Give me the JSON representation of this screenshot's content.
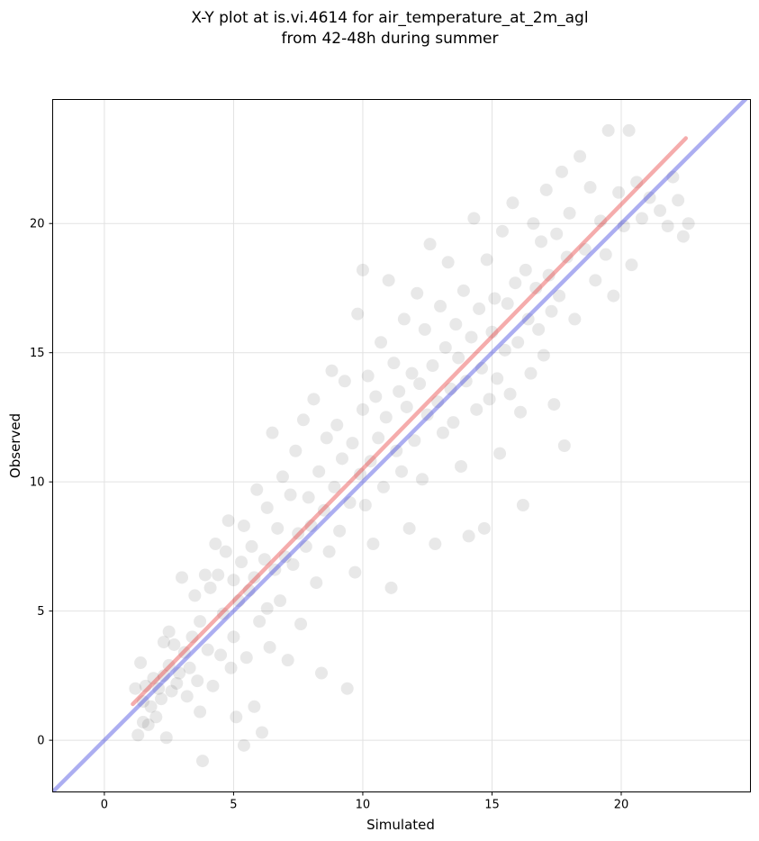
{
  "chart_data": {
    "type": "scatter",
    "title_lines": [
      "X-Y plot at is.vi.4614 for air_temperature_at_2m_agl",
      "from 42-48h during summer"
    ],
    "xlabel": "Simulated",
    "ylabel": "Observed",
    "xlim": [
      -2,
      25
    ],
    "ylim": [
      -2,
      24.8
    ],
    "xticks": [
      0,
      5,
      10,
      15,
      20
    ],
    "yticks": [
      0,
      5,
      10,
      15,
      20
    ],
    "grid": true,
    "point_color": "#000000",
    "point_alpha": 0.09,
    "points": [
      [
        1.2,
        2.0
      ],
      [
        1.3,
        0.2
      ],
      [
        1.4,
        3.0
      ],
      [
        1.5,
        1.5
      ],
      [
        1.5,
        0.7
      ],
      [
        1.6,
        2.1
      ],
      [
        1.7,
        0.6
      ],
      [
        1.8,
        1.3
      ],
      [
        1.9,
        2.4
      ],
      [
        2.0,
        0.9
      ],
      [
        2.1,
        2.0
      ],
      [
        2.2,
        1.6
      ],
      [
        2.3,
        3.8
      ],
      [
        2.3,
        2.5
      ],
      [
        2.4,
        0.1
      ],
      [
        2.5,
        2.9
      ],
      [
        2.5,
        4.2
      ],
      [
        2.6,
        1.9
      ],
      [
        2.7,
        3.7
      ],
      [
        2.8,
        2.2
      ],
      [
        2.9,
        2.6
      ],
      [
        3.0,
        6.3
      ],
      [
        3.1,
        3.4
      ],
      [
        3.2,
        1.7
      ],
      [
        3.3,
        2.8
      ],
      [
        3.4,
        4.0
      ],
      [
        3.5,
        5.6
      ],
      [
        3.6,
        2.3
      ],
      [
        3.7,
        4.6
      ],
      [
        3.7,
        1.1
      ],
      [
        3.8,
        -0.8
      ],
      [
        3.9,
        6.4
      ],
      [
        4.0,
        3.5
      ],
      [
        4.1,
        5.9
      ],
      [
        4.2,
        2.1
      ],
      [
        4.3,
        7.6
      ],
      [
        4.4,
        6.4
      ],
      [
        4.5,
        3.3
      ],
      [
        4.6,
        4.9
      ],
      [
        4.7,
        7.3
      ],
      [
        4.8,
        8.5
      ],
      [
        4.9,
        2.8
      ],
      [
        5.0,
        6.2
      ],
      [
        5.0,
        4.0
      ],
      [
        5.1,
        0.9
      ],
      [
        5.2,
        5.4
      ],
      [
        5.3,
        6.9
      ],
      [
        5.4,
        -0.2
      ],
      [
        5.4,
        8.3
      ],
      [
        5.5,
        3.2
      ],
      [
        5.6,
        5.8
      ],
      [
        5.7,
        7.5
      ],
      [
        5.8,
        1.3
      ],
      [
        5.8,
        6.3
      ],
      [
        5.9,
        9.7
      ],
      [
        6.0,
        4.6
      ],
      [
        6.1,
        0.3
      ],
      [
        6.2,
        7.0
      ],
      [
        6.3,
        5.1
      ],
      [
        6.3,
        9.0
      ],
      [
        6.4,
        3.6
      ],
      [
        6.5,
        11.9
      ],
      [
        6.6,
        6.6
      ],
      [
        6.7,
        8.2
      ],
      [
        6.8,
        5.4
      ],
      [
        6.9,
        10.2
      ],
      [
        7.0,
        7.1
      ],
      [
        7.1,
        3.1
      ],
      [
        7.2,
        9.5
      ],
      [
        7.3,
        6.8
      ],
      [
        7.4,
        11.2
      ],
      [
        7.5,
        8.0
      ],
      [
        7.6,
        4.5
      ],
      [
        7.7,
        12.4
      ],
      [
        7.8,
        7.5
      ],
      [
        7.9,
        9.4
      ],
      [
        8.0,
        8.3
      ],
      [
        8.1,
        13.2
      ],
      [
        8.2,
        6.1
      ],
      [
        8.3,
        10.4
      ],
      [
        8.4,
        2.6
      ],
      [
        8.5,
        8.9
      ],
      [
        8.6,
        11.7
      ],
      [
        8.7,
        7.3
      ],
      [
        8.8,
        14.3
      ],
      [
        8.9,
        9.8
      ],
      [
        9.0,
        12.2
      ],
      [
        9.1,
        8.1
      ],
      [
        9.2,
        10.9
      ],
      [
        9.3,
        13.9
      ],
      [
        9.4,
        2.0
      ],
      [
        9.5,
        9.2
      ],
      [
        9.6,
        11.5
      ],
      [
        9.7,
        6.5
      ],
      [
        9.8,
        16.5
      ],
      [
        9.9,
        10.3
      ],
      [
        10.0,
        12.8
      ],
      [
        10.0,
        18.2
      ],
      [
        10.1,
        9.1
      ],
      [
        10.2,
        14.1
      ],
      [
        10.3,
        10.8
      ],
      [
        10.4,
        7.6
      ],
      [
        10.5,
        13.3
      ],
      [
        10.6,
        11.7
      ],
      [
        10.7,
        15.4
      ],
      [
        10.8,
        9.8
      ],
      [
        10.9,
        12.5
      ],
      [
        11.0,
        17.8
      ],
      [
        11.1,
        5.9
      ],
      [
        11.2,
        14.6
      ],
      [
        11.3,
        11.2
      ],
      [
        11.4,
        13.5
      ],
      [
        11.5,
        10.4
      ],
      [
        11.6,
        16.3
      ],
      [
        11.7,
        12.9
      ],
      [
        11.8,
        8.2
      ],
      [
        11.9,
        14.2
      ],
      [
        12.0,
        11.6
      ],
      [
        12.1,
        17.3
      ],
      [
        12.2,
        13.8
      ],
      [
        12.3,
        10.1
      ],
      [
        12.4,
        15.9
      ],
      [
        12.5,
        12.6
      ],
      [
        12.6,
        19.2
      ],
      [
        12.7,
        14.5
      ],
      [
        12.8,
        7.6
      ],
      [
        12.9,
        13.1
      ],
      [
        13.0,
        16.8
      ],
      [
        13.1,
        11.9
      ],
      [
        13.2,
        15.2
      ],
      [
        13.3,
        18.5
      ],
      [
        13.4,
        13.6
      ],
      [
        13.5,
        12.3
      ],
      [
        13.6,
        16.1
      ],
      [
        13.7,
        14.8
      ],
      [
        13.8,
        10.6
      ],
      [
        13.9,
        17.4
      ],
      [
        14.0,
        13.9
      ],
      [
        14.1,
        7.9
      ],
      [
        14.2,
        15.6
      ],
      [
        14.3,
        20.2
      ],
      [
        14.4,
        12.8
      ],
      [
        14.5,
        16.7
      ],
      [
        14.6,
        14.4
      ],
      [
        14.7,
        8.2
      ],
      [
        14.8,
        18.6
      ],
      [
        14.9,
        13.2
      ],
      [
        15.0,
        15.8
      ],
      [
        15.1,
        17.1
      ],
      [
        15.2,
        14.0
      ],
      [
        15.3,
        11.1
      ],
      [
        15.4,
        19.7
      ],
      [
        15.5,
        15.1
      ],
      [
        15.6,
        16.9
      ],
      [
        15.7,
        13.4
      ],
      [
        15.8,
        20.8
      ],
      [
        15.9,
        17.7
      ],
      [
        16.0,
        15.4
      ],
      [
        16.1,
        12.7
      ],
      [
        16.2,
        9.1
      ],
      [
        16.3,
        18.2
      ],
      [
        16.4,
        16.3
      ],
      [
        16.5,
        14.2
      ],
      [
        16.6,
        20.0
      ],
      [
        16.7,
        17.5
      ],
      [
        16.8,
        15.9
      ],
      [
        16.9,
        19.3
      ],
      [
        17.0,
        14.9
      ],
      [
        17.1,
        21.3
      ],
      [
        17.2,
        18.0
      ],
      [
        17.3,
        16.6
      ],
      [
        17.4,
        13.0
      ],
      [
        17.5,
        19.6
      ],
      [
        17.6,
        17.2
      ],
      [
        17.7,
        22.0
      ],
      [
        17.8,
        11.4
      ],
      [
        17.9,
        18.7
      ],
      [
        18.0,
        20.4
      ],
      [
        18.2,
        16.3
      ],
      [
        18.4,
        22.6
      ],
      [
        18.6,
        19.0
      ],
      [
        18.8,
        21.4
      ],
      [
        19.0,
        17.8
      ],
      [
        19.2,
        20.1
      ],
      [
        19.4,
        18.8
      ],
      [
        19.5,
        23.6
      ],
      [
        19.7,
        17.2
      ],
      [
        19.9,
        21.2
      ],
      [
        20.1,
        19.9
      ],
      [
        20.3,
        23.6
      ],
      [
        20.4,
        18.4
      ],
      [
        20.6,
        21.6
      ],
      [
        20.8,
        20.2
      ],
      [
        21.1,
        21.0
      ],
      [
        21.5,
        20.5
      ],
      [
        21.8,
        19.9
      ],
      [
        22.0,
        21.8
      ],
      [
        22.2,
        20.9
      ],
      [
        22.4,
        19.5
      ],
      [
        22.6,
        20.0
      ]
    ],
    "lines": [
      {
        "color": "#e8393a",
        "alpha": 0.42,
        "x": [
          1.1,
          22.5
        ],
        "y": [
          1.4,
          23.3
        ]
      },
      {
        "color": "#3035dd",
        "alpha": 0.4,
        "x": [
          -2,
          25
        ],
        "y": [
          -2,
          25
        ]
      }
    ]
  }
}
